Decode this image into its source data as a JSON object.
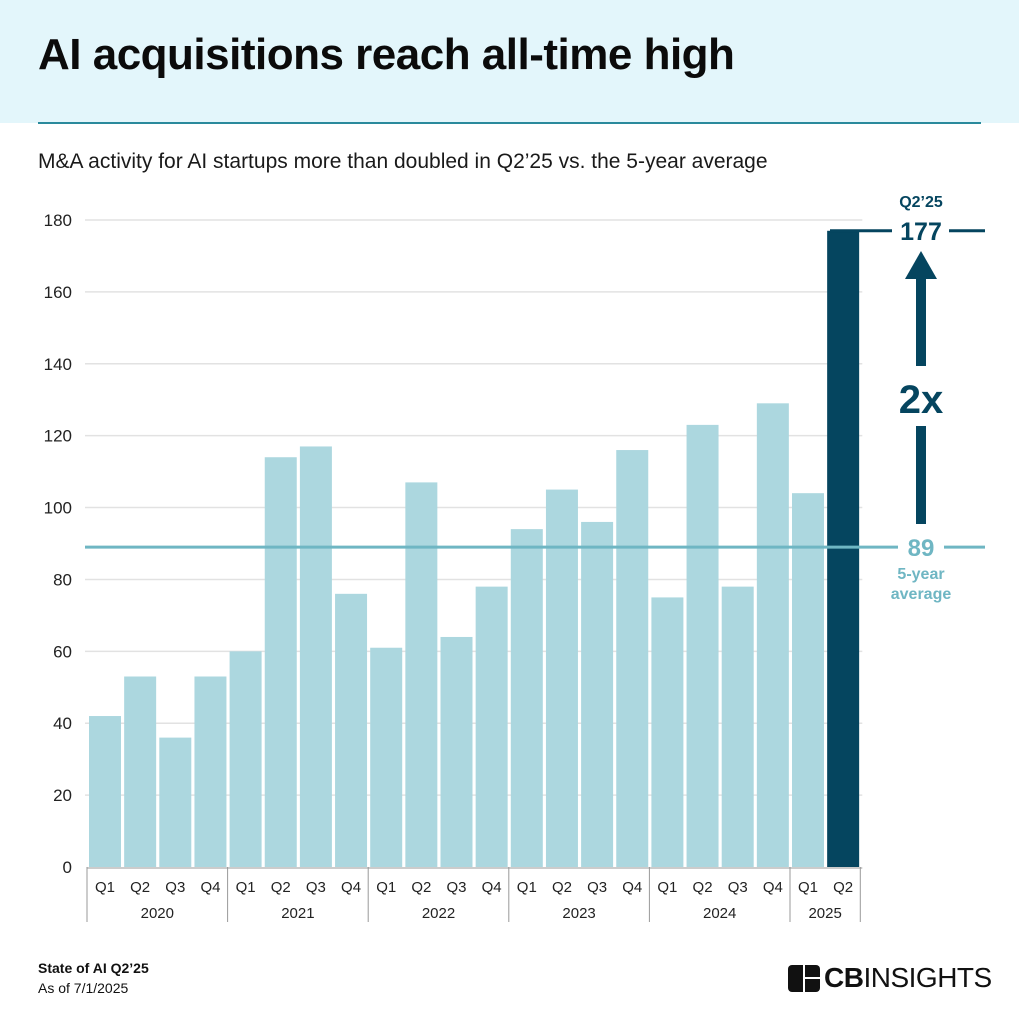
{
  "header": {
    "title": "AI acquisitions reach all-time high",
    "subtitle": "M&A activity for AI startups more than doubled in Q2’25 vs. the 5-year average"
  },
  "footer": {
    "report": "State of AI Q2’25",
    "as_of": "As of 7/1/2025",
    "logo_text": "CBINSIGHTS"
  },
  "chart_data": {
    "type": "bar",
    "title": "AI acquisitions reach all-time high",
    "subtitle": "M&A activity for AI startups more than doubled in Q2’25 vs. the 5-year average",
    "years": [
      "2020",
      "2021",
      "2022",
      "2023",
      "2024",
      "2025"
    ],
    "categories": [
      "Q1",
      "Q2",
      "Q3",
      "Q4",
      "Q1",
      "Q2",
      "Q3",
      "Q4",
      "Q1",
      "Q2",
      "Q3",
      "Q4",
      "Q1",
      "Q2",
      "Q3",
      "Q4",
      "Q1",
      "Q2",
      "Q3",
      "Q4",
      "Q1",
      "Q2"
    ],
    "category_years": [
      "2020",
      "2020",
      "2020",
      "2020",
      "2021",
      "2021",
      "2021",
      "2021",
      "2022",
      "2022",
      "2022",
      "2022",
      "2023",
      "2023",
      "2023",
      "2023",
      "2024",
      "2024",
      "2024",
      "2024",
      "2025",
      "2025"
    ],
    "values": [
      42,
      53,
      36,
      53,
      60,
      114,
      117,
      76,
      61,
      107,
      64,
      78,
      94,
      105,
      96,
      116,
      75,
      123,
      78,
      129,
      104,
      177
    ],
    "ylim": [
      0,
      180
    ],
    "yticks": [
      "0",
      "20",
      "40",
      "60",
      "80",
      "100",
      "120",
      "140",
      "160",
      "180"
    ],
    "grid": true,
    "colors": {
      "bar": "#acd7df",
      "highlight": "#05455f",
      "average": "#6fb6c3"
    },
    "average": {
      "value": 89,
      "label": "89",
      "caption_line1": "5-year",
      "caption_line2": "average"
    },
    "highlight": {
      "label": "Q2’25",
      "value_label": "177",
      "multiplier": "2x"
    }
  }
}
